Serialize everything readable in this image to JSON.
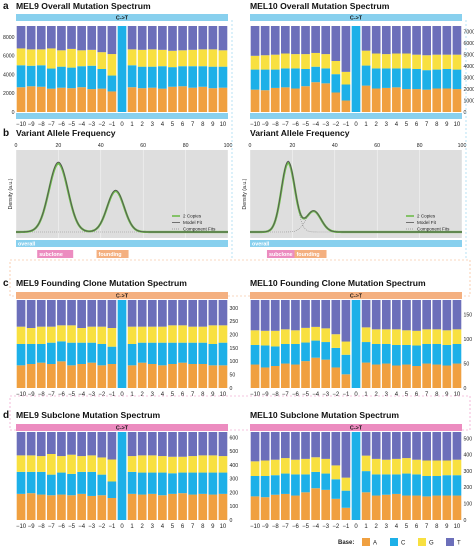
{
  "colors": {
    "A": "#f0a040",
    "C": "#1db0e8",
    "G": "#f8e040",
    "T": "#6c6fba",
    "overall": "#88d0ee",
    "founding": "#f4b080",
    "subclone": "#ec8cc0",
    "density_bg": "#dedede",
    "two_copies": "#6dbb4a",
    "model_fit": "#555555"
  },
  "panel_labels": [
    "a",
    "b",
    "c",
    "d"
  ],
  "mutation_strip": "C->T",
  "strip_labels": {
    "overall": "overall",
    "subclone": "subclone",
    "founding": "founding"
  },
  "vaf_ticks": [
    "0",
    "20",
    "40",
    "60",
    "80",
    "100"
  ],
  "legend_vaf": [
    "2 Copies",
    "Model Fit",
    "Component Fits"
  ],
  "legend_base": {
    "title": "Base:",
    "items": [
      "A",
      "C",
      "G",
      "T"
    ]
  },
  "chart_data": [
    {
      "type": "bar",
      "stacked": true,
      "id": "mel9_overall",
      "title": "MEL9 Overall Mutation Spectrum",
      "x": [
        "−10",
        "−9",
        "−8",
        "−7",
        "−6",
        "−5",
        "−4",
        "−3",
        "−2",
        "−1",
        "0",
        "1",
        "2",
        "3",
        "4",
        "5",
        "6",
        "7",
        "8",
        "9",
        "10"
      ],
      "y_ticks": [
        "0",
        "2000",
        "4000",
        "6000",
        "8000"
      ],
      "ylim": [
        0,
        9200
      ],
      "y_axis": "left",
      "series": [
        {
          "name": "A",
          "values": [
            2650,
            2750,
            2700,
            2500,
            2600,
            2550,
            2650,
            2450,
            2500,
            2200,
            0,
            2650,
            2550,
            2600,
            2500,
            2700,
            2750,
            2600,
            2700,
            2550,
            2600
          ]
        },
        {
          "name": "C",
          "values": [
            2350,
            2200,
            2300,
            2150,
            2250,
            2200,
            2250,
            2500,
            2100,
            1700,
            9200,
            2350,
            2300,
            2250,
            2400,
            2100,
            2150,
            2300,
            2200,
            2300,
            2250
          ]
        },
        {
          "name": "G",
          "values": [
            1800,
            1750,
            1700,
            2150,
            1750,
            2000,
            1700,
            1700,
            1800,
            2300,
            0,
            1700,
            1800,
            1850,
            1750,
            1750,
            1700,
            1750,
            1800,
            1850,
            1750
          ]
        },
        {
          "name": "T",
          "values": [
            2400,
            2500,
            2500,
            2400,
            2600,
            2450,
            2600,
            2550,
            2800,
            3000,
            0,
            2500,
            2550,
            2500,
            2550,
            2650,
            2600,
            2550,
            2500,
            2500,
            2600
          ]
        }
      ]
    },
    {
      "type": "bar",
      "stacked": true,
      "id": "mel10_overall",
      "title": "MEL10 Overall Mutation Spectrum",
      "x": [
        "−10",
        "−9",
        "−8",
        "−7",
        "−6",
        "−5",
        "−4",
        "−3",
        "−2",
        "−1",
        "0",
        "1",
        "2",
        "3",
        "4",
        "5",
        "6",
        "7",
        "8",
        "9",
        "10"
      ],
      "y_ticks": [
        "0",
        "1000",
        "2000",
        "3000",
        "4000",
        "5000",
        "6000",
        "7000"
      ],
      "ylim": [
        0,
        7500
      ],
      "y_axis": "right",
      "series": [
        {
          "name": "A",
          "values": [
            1950,
            1900,
            2100,
            2150,
            2050,
            2250,
            2600,
            2500,
            1700,
            1000,
            0,
            2300,
            2050,
            2100,
            2150,
            2000,
            2000,
            1950,
            2050,
            2050,
            2000
          ]
        },
        {
          "name": "C",
          "values": [
            1750,
            1800,
            1600,
            1650,
            1750,
            1500,
            1350,
            1300,
            1600,
            1400,
            7500,
            1750,
            1750,
            1700,
            1650,
            1800,
            1750,
            1700,
            1650,
            1700,
            1700
          ]
        },
        {
          "name": "G",
          "values": [
            1200,
            1250,
            1300,
            1300,
            1250,
            1300,
            1200,
            1250,
            1150,
            1100,
            0,
            1300,
            1300,
            1250,
            1300,
            1300,
            1250,
            1300,
            1300,
            1250,
            1300
          ]
        },
        {
          "name": "T",
          "values": [
            2600,
            2550,
            2500,
            2400,
            2450,
            2450,
            2350,
            2450,
            3050,
            4000,
            0,
            2150,
            2400,
            2450,
            2400,
            2400,
            2500,
            2550,
            2500,
            2500,
            2500
          ]
        }
      ]
    },
    {
      "type": "line",
      "id": "mel9_vaf",
      "title": "Variant Allele Frequency",
      "ylabel": "Density (a.u.)",
      "xlim": [
        0,
        100
      ],
      "peaks": [
        {
          "label": "subclone",
          "mu": 20,
          "sd": 4.5,
          "height": 0.92
        },
        {
          "label": "founding",
          "mu": 47,
          "sd": 4.0,
          "height": 0.55
        }
      ]
    },
    {
      "type": "line",
      "id": "mel10_vaf",
      "title": "Variant Allele Frequency",
      "ylabel": "Density (a.u.)",
      "xlim": [
        0,
        100
      ],
      "peaks": [
        {
          "label": "subclone",
          "mu": 18,
          "sd": 3.2,
          "height": 0.93
        },
        {
          "label": "founding",
          "mu": 30,
          "sd": 3.5,
          "height": 0.28
        }
      ]
    },
    {
      "type": "bar",
      "stacked": true,
      "id": "mel9_founding",
      "title": "MEL9 Founding Clone Mutation Spectrum",
      "x": [
        "−10",
        "−9",
        "−8",
        "−7",
        "−6",
        "−5",
        "−4",
        "−3",
        "−2",
        "−1",
        "0",
        "1",
        "2",
        "3",
        "4",
        "5",
        "6",
        "7",
        "8",
        "9",
        "10"
      ],
      "y_ticks": [
        "0",
        "50",
        "100",
        "150",
        "200",
        "250",
        "300"
      ],
      "ylim": [
        0,
        330
      ],
      "y_axis": "right",
      "series": [
        {
          "name": "A",
          "values": [
            85,
            90,
            95,
            90,
            100,
            85,
            90,
            95,
            85,
            90,
            0,
            85,
            95,
            90,
            85,
            90,
            95,
            90,
            90,
            85,
            85
          ]
        },
        {
          "name": "C",
          "values": [
            80,
            75,
            70,
            80,
            75,
            85,
            80,
            75,
            80,
            65,
            330,
            80,
            75,
            80,
            85,
            80,
            75,
            80,
            80,
            80,
            85
          ]
        },
        {
          "name": "G",
          "values": [
            65,
            60,
            65,
            60,
            60,
            65,
            55,
            60,
            65,
            70,
            0,
            65,
            60,
            60,
            60,
            65,
            65,
            60,
            60,
            70,
            65
          ]
        },
        {
          "name": "T",
          "values": [
            100,
            105,
            100,
            100,
            95,
            95,
            105,
            100,
            100,
            105,
            0,
            100,
            100,
            100,
            100,
            95,
            95,
            100,
            100,
            95,
            95
          ]
        }
      ]
    },
    {
      "type": "bar",
      "stacked": true,
      "id": "mel10_founding",
      "title": "MEL10 Founding Clone Mutation Spectrum",
      "x": [
        "−10",
        "−9",
        "−8",
        "−7",
        "−6",
        "−5",
        "−4",
        "−3",
        "−2",
        "−1",
        "0",
        "1",
        "2",
        "3",
        "4",
        "5",
        "6",
        "7",
        "8",
        "9",
        "10"
      ],
      "y_ticks": [
        "0",
        "50",
        "100",
        "150"
      ],
      "ylim": [
        0,
        180
      ],
      "y_axis": "right",
      "series": [
        {
          "name": "A",
          "values": [
            48,
            42,
            45,
            50,
            48,
            55,
            62,
            58,
            42,
            28,
            0,
            52,
            48,
            50,
            46,
            48,
            45,
            50,
            48,
            46,
            50
          ]
        },
        {
          "name": "C",
          "values": [
            40,
            45,
            40,
            40,
            42,
            38,
            35,
            36,
            40,
            40,
            180,
            42,
            42,
            40,
            42,
            40,
            42,
            40,
            42,
            42,
            40
          ]
        },
        {
          "name": "G",
          "values": [
            30,
            30,
            32,
            30,
            28,
            30,
            28,
            28,
            28,
            27,
            0,
            30,
            30,
            30,
            32,
            30,
            30,
            30,
            30,
            30,
            30
          ]
        },
        {
          "name": "T",
          "values": [
            62,
            63,
            63,
            60,
            62,
            57,
            55,
            58,
            70,
            85,
            0,
            56,
            60,
            60,
            60,
            62,
            63,
            60,
            60,
            62,
            60
          ]
        }
      ]
    },
    {
      "type": "bar",
      "stacked": true,
      "id": "mel9_subclone",
      "title": "MEL9 Subclone Mutation Spectrum",
      "x": [
        "−10",
        "−9",
        "−8",
        "−7",
        "−6",
        "−5",
        "−4",
        "−3",
        "−2",
        "−1",
        "0",
        "1",
        "2",
        "3",
        "4",
        "5",
        "6",
        "7",
        "8",
        "9",
        "10"
      ],
      "y_ticks": [
        "0",
        "100",
        "200",
        "300",
        "400",
        "500",
        "600"
      ],
      "ylim": [
        0,
        640
      ],
      "y_axis": "right",
      "series": [
        {
          "name": "A",
          "values": [
            190,
            195,
            185,
            180,
            185,
            180,
            190,
            175,
            180,
            160,
            0,
            190,
            185,
            190,
            180,
            190,
            195,
            185,
            190,
            185,
            190
          ]
        },
        {
          "name": "C",
          "values": [
            160,
            155,
            165,
            150,
            160,
            155,
            160,
            175,
            150,
            120,
            640,
            160,
            160,
            155,
            165,
            150,
            150,
            160,
            155,
            160,
            155
          ]
        },
        {
          "name": "G",
          "values": [
            120,
            120,
            115,
            150,
            120,
            140,
            115,
            120,
            125,
            160,
            0,
            115,
            125,
            125,
            120,
            120,
            115,
            120,
            125,
            125,
            120
          ]
        },
        {
          "name": "T",
          "values": [
            170,
            170,
            175,
            160,
            175,
            165,
            175,
            170,
            185,
            200,
            0,
            175,
            170,
            170,
            175,
            180,
            180,
            175,
            170,
            170,
            175
          ]
        }
      ]
    },
    {
      "type": "bar",
      "stacked": true,
      "id": "mel10_subclone",
      "title": "MEL10 Subclone Mutation Spectrum",
      "x": [
        "−10",
        "−9",
        "−8",
        "−7",
        "−6",
        "−5",
        "−4",
        "−3",
        "−2",
        "−1",
        "0",
        "1",
        "2",
        "3",
        "4",
        "5",
        "6",
        "7",
        "8",
        "9",
        "10"
      ],
      "y_ticks": [
        "0",
        "100",
        "200",
        "300",
        "400",
        "500"
      ],
      "ylim": [
        0,
        540
      ],
      "y_axis": "right",
      "series": [
        {
          "name": "A",
          "values": [
            145,
            140,
            155,
            160,
            150,
            170,
            195,
            185,
            130,
            75,
            0,
            170,
            150,
            155,
            160,
            150,
            150,
            145,
            150,
            150,
            150
          ]
        },
        {
          "name": "C",
          "values": [
            125,
            130,
            120,
            125,
            130,
            110,
            100,
            100,
            120,
            105,
            540,
            130,
            130,
            125,
            120,
            135,
            130,
            125,
            120,
            125,
            125
          ]
        },
        {
          "name": "G",
          "values": [
            90,
            95,
            95,
            95,
            90,
            95,
            90,
            90,
            85,
            80,
            0,
            95,
            95,
            90,
            95,
            95,
            90,
            95,
            95,
            90,
            95
          ]
        },
        {
          "name": "T",
          "values": [
            180,
            175,
            170,
            160,
            170,
            165,
            155,
            165,
            205,
            280,
            0,
            145,
            165,
            170,
            165,
            160,
            170,
            175,
            175,
            175,
            170
          ]
        }
      ]
    }
  ]
}
